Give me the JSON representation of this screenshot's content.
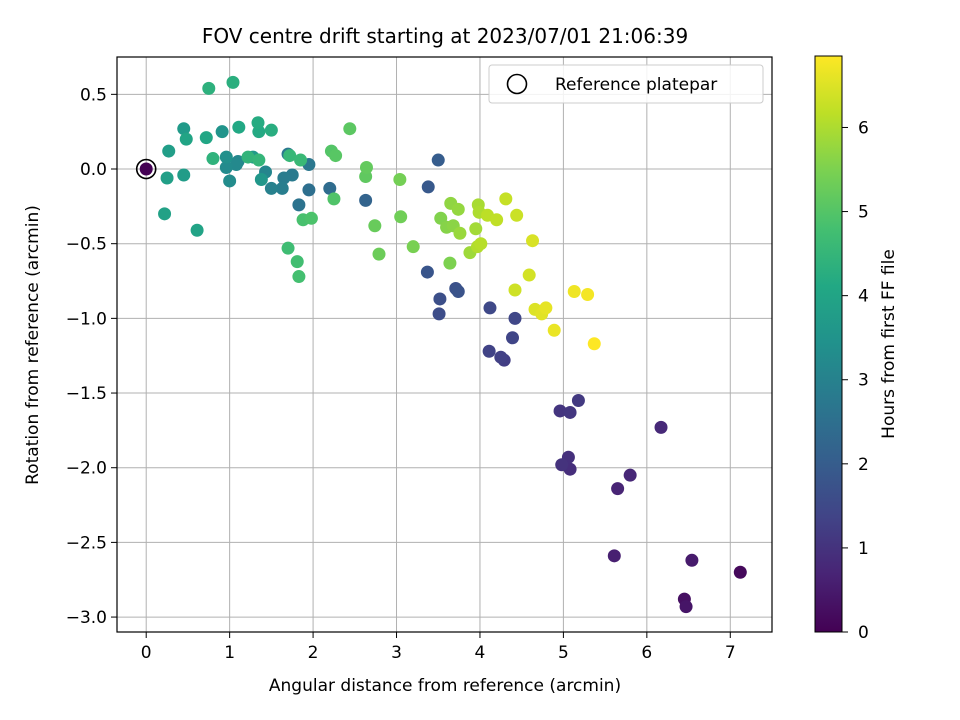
{
  "chart_data": {
    "type": "scatter",
    "title": "FOV centre drift starting at 2023/07/01 21:06:39",
    "xlabel": "Angular distance from reference (arcmin)",
    "ylabel": "Rotation from reference (arcmin)",
    "xlim": [
      -0.35,
      7.5
    ],
    "ylim": [
      -3.1,
      0.75
    ],
    "xticks": [
      0,
      1,
      2,
      3,
      4,
      5,
      6,
      7
    ],
    "yticks": [
      0.5,
      0.0,
      -0.5,
      -1.0,
      -1.5,
      -2.0,
      -2.5,
      -3.0
    ],
    "xtick_labels": [
      "0",
      "1",
      "2",
      "3",
      "4",
      "5",
      "6",
      "7"
    ],
    "ytick_labels": [
      "0.5",
      "0.0",
      "−0.5",
      "−1.0",
      "−1.5",
      "−2.0",
      "−2.5",
      "−3.0"
    ],
    "grid": true,
    "legend": {
      "placement": "upper right",
      "entries": [
        {
          "label": "Reference platepar",
          "marker": "open-circle"
        }
      ]
    },
    "reference_point": {
      "x": 0.0,
      "y": 0.0
    },
    "colorbar": {
      "label": "Hours from first FF file",
      "range": [
        0,
        6.85
      ],
      "ticks": [
        0,
        1,
        2,
        3,
        4,
        5,
        6
      ],
      "tick_labels": [
        "0",
        "1",
        "2",
        "3",
        "4",
        "5",
        "6"
      ],
      "colormap": "viridis"
    },
    "points": [
      {
        "x": 0.0,
        "y": 0.0,
        "c": 0.0
      },
      {
        "x": 7.12,
        "y": -2.7,
        "c": 0.15
      },
      {
        "x": 6.45,
        "y": -2.88,
        "c": 0.3
      },
      {
        "x": 6.47,
        "y": -2.93,
        "c": 0.4
      },
      {
        "x": 6.54,
        "y": -2.62,
        "c": 0.5
      },
      {
        "x": 5.61,
        "y": -2.59,
        "c": 0.6
      },
      {
        "x": 5.65,
        "y": -2.14,
        "c": 0.7
      },
      {
        "x": 5.8,
        "y": -2.05,
        "c": 0.75
      },
      {
        "x": 6.17,
        "y": -1.73,
        "c": 0.8
      },
      {
        "x": 5.08,
        "y": -2.01,
        "c": 0.9
      },
      {
        "x": 5.06,
        "y": -1.93,
        "c": 0.95
      },
      {
        "x": 4.98,
        "y": -1.98,
        "c": 1.0
      },
      {
        "x": 4.96,
        "y": -1.62,
        "c": 1.05
      },
      {
        "x": 5.08,
        "y": -1.63,
        "c": 1.1
      },
      {
        "x": 5.18,
        "y": -1.55,
        "c": 1.15
      },
      {
        "x": 4.29,
        "y": -1.28,
        "c": 1.25
      },
      {
        "x": 4.25,
        "y": -1.26,
        "c": 1.3
      },
      {
        "x": 4.11,
        "y": -1.22,
        "c": 1.35
      },
      {
        "x": 4.39,
        "y": -1.13,
        "c": 1.4
      },
      {
        "x": 4.42,
        "y": -1.0,
        "c": 1.45
      },
      {
        "x": 4.12,
        "y": -0.93,
        "c": 1.5
      },
      {
        "x": 3.51,
        "y": -0.97,
        "c": 1.6
      },
      {
        "x": 3.52,
        "y": -0.87,
        "c": 1.65
      },
      {
        "x": 3.71,
        "y": -0.8,
        "c": 1.7
      },
      {
        "x": 3.74,
        "y": -0.82,
        "c": 1.75
      },
      {
        "x": 3.37,
        "y": -0.69,
        "c": 1.8
      },
      {
        "x": 3.38,
        "y": -0.12,
        "c": 1.9
      },
      {
        "x": 3.5,
        "y": 0.06,
        "c": 2.0
      },
      {
        "x": 2.63,
        "y": -0.21,
        "c": 2.2
      },
      {
        "x": 2.2,
        "y": -0.13,
        "c": 2.4
      },
      {
        "x": 1.95,
        "y": -0.14,
        "c": 2.5
      },
      {
        "x": 1.83,
        "y": -0.24,
        "c": 2.6
      },
      {
        "x": 1.95,
        "y": 0.03,
        "c": 2.7
      },
      {
        "x": 1.7,
        "y": 0.1,
        "c": 2.75
      },
      {
        "x": 1.75,
        "y": -0.04,
        "c": 2.8
      },
      {
        "x": 1.65,
        "y": -0.06,
        "c": 2.85
      },
      {
        "x": 1.63,
        "y": -0.13,
        "c": 2.9
      },
      {
        "x": 1.5,
        "y": -0.13,
        "c": 3.0
      },
      {
        "x": 1.43,
        "y": -0.02,
        "c": 3.1
      },
      {
        "x": 1.1,
        "y": 0.05,
        "c": 3.15
      },
      {
        "x": 1.08,
        "y": 0.03,
        "c": 3.2
      },
      {
        "x": 0.96,
        "y": 0.01,
        "c": 3.25
      },
      {
        "x": 1.0,
        "y": -0.08,
        "c": 3.3
      },
      {
        "x": 0.96,
        "y": 0.08,
        "c": 3.4
      },
      {
        "x": 0.91,
        "y": 0.25,
        "c": 3.5
      },
      {
        "x": 1.38,
        "y": -0.07,
        "c": 3.6
      },
      {
        "x": 1.28,
        "y": 0.08,
        "c": 3.65
      },
      {
        "x": 0.45,
        "y": 0.27,
        "c": 3.7
      },
      {
        "x": 0.45,
        "y": -0.04,
        "c": 3.75
      },
      {
        "x": 0.27,
        "y": 0.12,
        "c": 3.8
      },
      {
        "x": 0.25,
        "y": -0.06,
        "c": 3.85
      },
      {
        "x": 0.22,
        "y": -0.3,
        "c": 3.9
      },
      {
        "x": 0.61,
        "y": -0.41,
        "c": 3.95
      },
      {
        "x": 0.48,
        "y": 0.2,
        "c": 4.0
      },
      {
        "x": 0.72,
        "y": 0.21,
        "c": 4.05
      },
      {
        "x": 1.11,
        "y": 0.28,
        "c": 4.1
      },
      {
        "x": 1.35,
        "y": 0.25,
        "c": 4.15
      },
      {
        "x": 1.34,
        "y": 0.31,
        "c": 4.2
      },
      {
        "x": 1.5,
        "y": 0.26,
        "c": 4.25
      },
      {
        "x": 1.04,
        "y": 0.58,
        "c": 4.3
      },
      {
        "x": 0.75,
        "y": 0.54,
        "c": 4.35
      },
      {
        "x": 0.8,
        "y": 0.07,
        "c": 4.4
      },
      {
        "x": 1.22,
        "y": 0.08,
        "c": 4.45
      },
      {
        "x": 1.35,
        "y": 0.06,
        "c": 4.5
      },
      {
        "x": 1.72,
        "y": 0.09,
        "c": 4.55
      },
      {
        "x": 1.85,
        "y": 0.06,
        "c": 4.6
      },
      {
        "x": 1.7,
        "y": -0.53,
        "c": 4.7
      },
      {
        "x": 1.81,
        "y": -0.62,
        "c": 4.75
      },
      {
        "x": 1.83,
        "y": -0.72,
        "c": 4.8
      },
      {
        "x": 1.88,
        "y": -0.34,
        "c": 4.85
      },
      {
        "x": 1.98,
        "y": -0.33,
        "c": 4.9
      },
      {
        "x": 2.25,
        "y": -0.2,
        "c": 4.95
      },
      {
        "x": 2.22,
        "y": 0.12,
        "c": 5.0
      },
      {
        "x": 2.27,
        "y": 0.09,
        "c": 5.05
      },
      {
        "x": 2.44,
        "y": 0.27,
        "c": 5.1
      },
      {
        "x": 2.63,
        "y": -0.05,
        "c": 5.15
      },
      {
        "x": 2.64,
        "y": 0.01,
        "c": 5.2
      },
      {
        "x": 2.74,
        "y": -0.38,
        "c": 5.25
      },
      {
        "x": 2.79,
        "y": -0.57,
        "c": 5.3
      },
      {
        "x": 3.05,
        "y": -0.32,
        "c": 5.35
      },
      {
        "x": 3.04,
        "y": -0.07,
        "c": 5.4
      },
      {
        "x": 3.2,
        "y": -0.52,
        "c": 5.45
      },
      {
        "x": 3.64,
        "y": -0.63,
        "c": 5.5
      },
      {
        "x": 3.53,
        "y": -0.33,
        "c": 5.55
      },
      {
        "x": 3.6,
        "y": -0.39,
        "c": 5.6
      },
      {
        "x": 3.68,
        "y": -0.38,
        "c": 5.65
      },
      {
        "x": 3.65,
        "y": -0.23,
        "c": 5.7
      },
      {
        "x": 3.74,
        "y": -0.27,
        "c": 5.75
      },
      {
        "x": 3.76,
        "y": -0.43,
        "c": 5.8
      },
      {
        "x": 3.88,
        "y": -0.56,
        "c": 5.85
      },
      {
        "x": 3.95,
        "y": -0.4,
        "c": 5.9
      },
      {
        "x": 3.98,
        "y": -0.24,
        "c": 5.95
      },
      {
        "x": 3.99,
        "y": -0.29,
        "c": 6.0
      },
      {
        "x": 3.97,
        "y": -0.52,
        "c": 6.05
      },
      {
        "x": 4.01,
        "y": -0.5,
        "c": 6.1
      },
      {
        "x": 4.09,
        "y": -0.31,
        "c": 6.15
      },
      {
        "x": 4.2,
        "y": -0.34,
        "c": 6.2
      },
      {
        "x": 4.31,
        "y": -0.2,
        "c": 6.25
      },
      {
        "x": 4.44,
        "y": -0.31,
        "c": 6.3
      },
      {
        "x": 4.42,
        "y": -0.81,
        "c": 6.35
      },
      {
        "x": 4.59,
        "y": -0.71,
        "c": 6.4
      },
      {
        "x": 4.63,
        "y": -0.48,
        "c": 6.45
      },
      {
        "x": 4.66,
        "y": -0.94,
        "c": 6.5
      },
      {
        "x": 4.74,
        "y": -0.97,
        "c": 6.55
      },
      {
        "x": 4.79,
        "y": -0.93,
        "c": 6.6
      },
      {
        "x": 4.89,
        "y": -1.08,
        "c": 6.65
      },
      {
        "x": 5.13,
        "y": -0.82,
        "c": 6.7
      },
      {
        "x": 5.29,
        "y": -0.84,
        "c": 6.75
      },
      {
        "x": 5.37,
        "y": -1.17,
        "c": 6.85
      }
    ]
  }
}
